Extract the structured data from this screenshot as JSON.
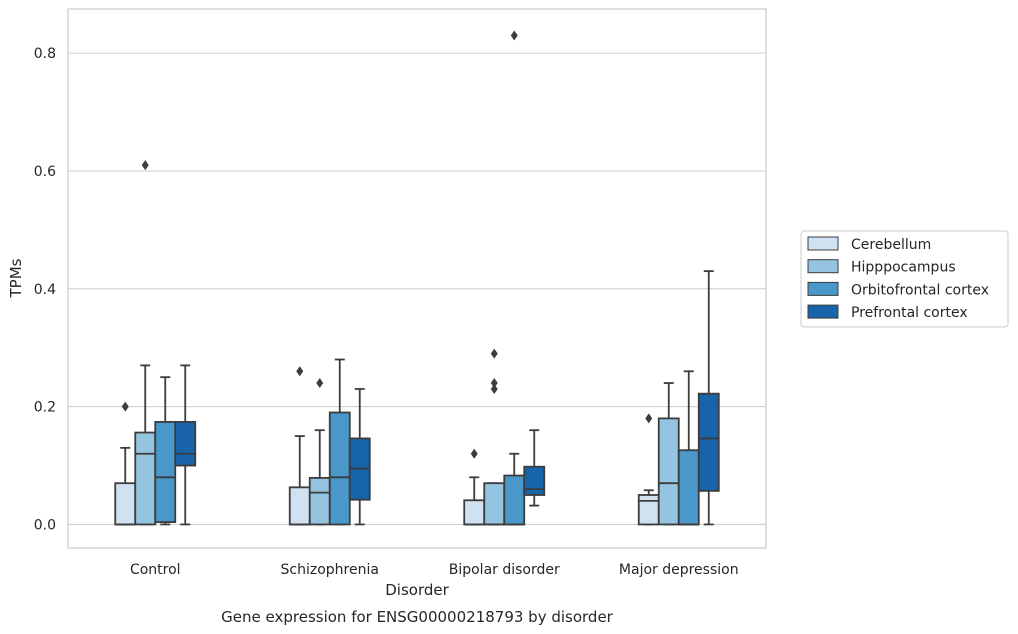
{
  "chart_data": {
    "type": "box",
    "title": "",
    "caption": "Gene expression for ENSG00000218793 by disorder",
    "xlabel": "Disorder",
    "ylabel": "TPMs",
    "ylim": [
      -0.04,
      0.875
    ],
    "yticks": [
      "0.0",
      "0.2",
      "0.4",
      "0.6",
      "0.8"
    ],
    "ytick_values": [
      0.0,
      0.2,
      0.4,
      0.6,
      0.8
    ],
    "grid": "horizontal",
    "legend_position": "right",
    "categories": [
      "Control",
      "Schizophrenia",
      "Bipolar disorder",
      "Major depression"
    ],
    "series": [
      {
        "name": "Cerebellum",
        "color": "#d0e1f2",
        "boxes": [
          {
            "whisker_low": 0.0,
            "q1": 0.0,
            "median": 0.0,
            "q3": 0.07,
            "whisker_high": 0.13,
            "outliers": [
              0.2
            ]
          },
          {
            "whisker_low": 0.0,
            "q1": 0.0,
            "median": 0.0,
            "q3": 0.063,
            "whisker_high": 0.15,
            "outliers": [
              0.26
            ]
          },
          {
            "whisker_low": 0.0,
            "q1": 0.0,
            "median": 0.0,
            "q3": 0.041,
            "whisker_high": 0.08,
            "outliers": [
              0.12
            ]
          },
          {
            "whisker_low": 0.0,
            "q1": 0.0,
            "median": 0.04,
            "q3": 0.05,
            "whisker_high": 0.058,
            "outliers": [
              0.18
            ]
          }
        ]
      },
      {
        "name": "Hipppocampus",
        "color": "#94c4df",
        "boxes": [
          {
            "whisker_low": 0.0,
            "q1": 0.0,
            "median": 0.12,
            "q3": 0.156,
            "whisker_high": 0.27,
            "outliers": [
              0.61
            ]
          },
          {
            "whisker_low": 0.0,
            "q1": 0.0,
            "median": 0.054,
            "q3": 0.079,
            "whisker_high": 0.16,
            "outliers": [
              0.24
            ]
          },
          {
            "whisker_low": 0.0,
            "q1": 0.0,
            "median": 0.0,
            "q3": 0.07,
            "whisker_high": 0.07,
            "outliers": [
              0.23,
              0.24,
              0.29
            ]
          },
          {
            "whisker_low": 0.0,
            "q1": 0.0,
            "median": 0.07,
            "q3": 0.18,
            "whisker_high": 0.24,
            "outliers": []
          }
        ]
      },
      {
        "name": "Orbitofrontal cortex",
        "color": "#4a98c9",
        "boxes": [
          {
            "whisker_low": 0.0,
            "q1": 0.004,
            "median": 0.08,
            "q3": 0.174,
            "whisker_high": 0.25,
            "outliers": []
          },
          {
            "whisker_low": 0.0,
            "q1": 0.0,
            "median": 0.08,
            "q3": 0.19,
            "whisker_high": 0.28,
            "outliers": []
          },
          {
            "whisker_low": 0.0,
            "q1": 0.0,
            "median": 0.0,
            "q3": 0.083,
            "whisker_high": 0.12,
            "outliers": [
              0.83
            ]
          },
          {
            "whisker_low": 0.0,
            "q1": 0.0,
            "median": 0.0,
            "q3": 0.126,
            "whisker_high": 0.26,
            "outliers": []
          }
        ]
      },
      {
        "name": "Prefrontal cortex",
        "color": "#1764ab",
        "boxes": [
          {
            "whisker_low": 0.0,
            "q1": 0.1,
            "median": 0.12,
            "q3": 0.174,
            "whisker_high": 0.27,
            "outliers": []
          },
          {
            "whisker_low": 0.0,
            "q1": 0.042,
            "median": 0.095,
            "q3": 0.146,
            "whisker_high": 0.23,
            "outliers": []
          },
          {
            "whisker_low": 0.032,
            "q1": 0.05,
            "median": 0.06,
            "q3": 0.098,
            "whisker_high": 0.16,
            "outliers": []
          },
          {
            "whisker_low": 0.0,
            "q1": 0.057,
            "median": 0.146,
            "q3": 0.222,
            "whisker_high": 0.43,
            "outliers": []
          }
        ]
      }
    ]
  }
}
